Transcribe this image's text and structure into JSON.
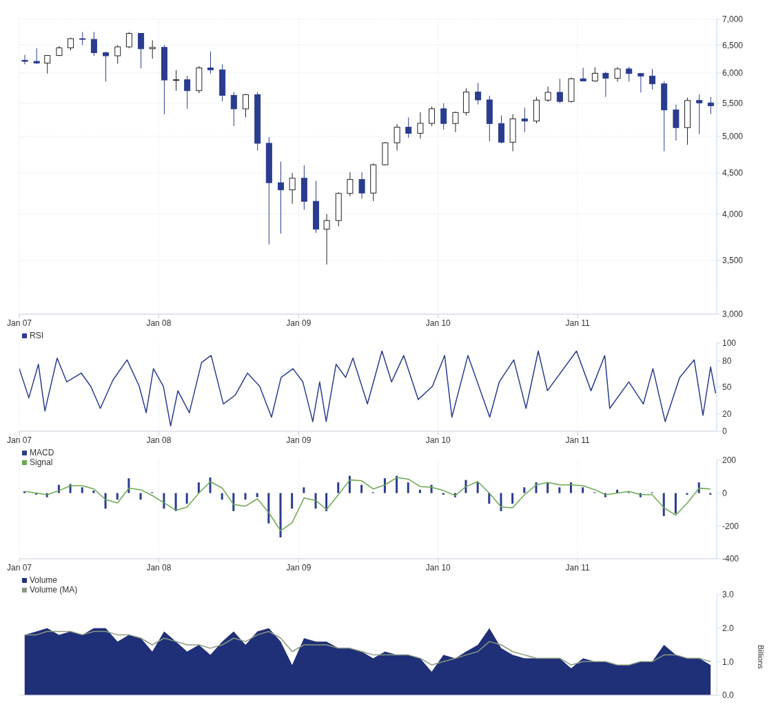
{
  "chart_data": [
    {
      "type": "candlestick",
      "colors": [
        "#2a3c8e",
        "#2a3c8e",
        "#ffffff",
        "#ffffff",
        "#ffffff",
        "#2a3c8e",
        "#2a3c8e",
        "#2a3c8e",
        "#ffffff",
        "#ffffff",
        "#2a3c8e",
        "#ffffff",
        "#2a3c8e",
        "#ffffff",
        "#2a3c8e",
        "#ffffff",
        "#2a3c8e",
        "#2a3c8e",
        "#2a3c8e",
        "#ffffff",
        "#2a3c8e",
        "#2a3c8e",
        "#2a3c8e",
        "#ffffff",
        "#2a3c8e",
        "#2a3c8e",
        "#ffffff",
        "#ffffff",
        "#ffffff",
        "#2a3c8e",
        "#ffffff",
        "#ffffff",
        "#ffffff",
        "#2a3c8e",
        "#ffffff",
        "#ffffff",
        "#2a3c8e",
        "#ffffff",
        "#ffffff",
        "#2a3c8e",
        "#2a3c8e",
        "#2a3c8e",
        "#ffffff",
        "#2a3c8e",
        "#ffffff",
        "#ffffff",
        "#2a3c8e",
        "#ffffff",
        "#2a3c8e",
        "#ffffff",
        "#2a3c8e",
        "#ffffff",
        "#2a3c8e",
        "#2a3c8e",
        "#2a3c8e",
        "#2a3c8e",
        "#2a3c8e",
        "#ffffff",
        "#2a3c8e",
        "#2a3c8e"
      ],
      "log": "y",
      "grid": true,
      "xlim": [
        "2007-01-01",
        "2011-12-31"
      ],
      "ylim": [
        3000,
        7000
      ],
      "yticks": [
        {
          "value": 3000,
          "label": "3,000"
        },
        {
          "value": 3500,
          "label": "3,500"
        },
        {
          "value": 4000,
          "label": "4,000"
        },
        {
          "value": 4500,
          "label": "4,500"
        },
        {
          "value": 5000,
          "label": "5,000"
        },
        {
          "value": 5500,
          "label": "5,500"
        },
        {
          "value": 6000,
          "label": "6,000"
        },
        {
          "value": 6500,
          "label": "6,500"
        },
        {
          "value": 7000,
          "label": "7,000"
        }
      ],
      "xticks": [
        {
          "value": "2007-01-01",
          "label": "Jan 07"
        },
        {
          "value": "2008-01-01",
          "label": "Jan 08"
        },
        {
          "value": "2009-01-01",
          "label": "Jan 09"
        },
        {
          "value": "2010-01-01",
          "label": "Jan 10"
        },
        {
          "value": "2011-01-01",
          "label": "Jan 11"
        }
      ],
      "x": [
        "2007-01-15",
        "2007-02-15",
        "2007-03-15",
        "2007-04-15",
        "2007-05-15",
        "2007-06-15",
        "2007-07-15",
        "2007-08-15",
        "2007-09-15",
        "2007-10-15",
        "2007-11-15",
        "2007-12-15",
        "2008-01-15",
        "2008-02-15",
        "2008-03-15",
        "2008-04-15",
        "2008-05-15",
        "2008-06-15",
        "2008-07-15",
        "2008-08-15",
        "2008-09-15",
        "2008-10-15",
        "2008-11-15",
        "2008-12-15",
        "2009-01-15",
        "2009-02-15",
        "2009-03-15",
        "2009-04-15",
        "2009-05-15",
        "2009-06-15",
        "2009-07-15",
        "2009-08-15",
        "2009-09-15",
        "2009-10-15",
        "2009-11-15",
        "2009-12-15",
        "2010-01-15",
        "2010-02-15",
        "2010-03-15",
        "2010-04-15",
        "2010-05-15",
        "2010-06-15",
        "2010-07-15",
        "2010-08-15",
        "2010-09-15",
        "2010-10-15",
        "2010-11-15",
        "2010-12-15",
        "2011-01-15",
        "2011-02-15",
        "2011-03-15",
        "2011-04-15",
        "2011-05-15",
        "2011-06-15",
        "2011-07-15",
        "2011-08-15",
        "2011-09-15",
        "2011-10-15",
        "2011-11-15",
        "2011-12-15"
      ],
      "ohlc": [
        [
          6221,
          6320,
          6150,
          6203
        ],
        [
          6203,
          6440,
          6160,
          6172
        ],
        [
          6172,
          6310,
          5990,
          6308
        ],
        [
          6308,
          6480,
          6300,
          6449
        ],
        [
          6449,
          6640,
          6400,
          6621
        ],
        [
          6621,
          6750,
          6500,
          6608
        ],
        [
          6608,
          6750,
          6300,
          6360
        ],
        [
          6360,
          6380,
          5850,
          6303
        ],
        [
          6303,
          6500,
          6160,
          6467
        ],
        [
          6467,
          6750,
          6440,
          6722
        ],
        [
          6722,
          6730,
          6080,
          6432
        ],
        [
          6432,
          6590,
          6250,
          6457
        ],
        [
          6457,
          6500,
          5330,
          5880
        ],
        [
          5880,
          6050,
          5700,
          5884
        ],
        [
          5884,
          5950,
          5410,
          5702
        ],
        [
          5702,
          6120,
          5660,
          6087
        ],
        [
          6087,
          6380,
          5990,
          6054
        ],
        [
          6054,
          6150,
          5530,
          5626
        ],
        [
          5626,
          5680,
          5150,
          5412
        ],
        [
          5412,
          5650,
          5280,
          5637
        ],
        [
          5637,
          5680,
          4800,
          4902
        ],
        [
          4902,
          4990,
          3665,
          4377
        ],
        [
          4377,
          4650,
          3780,
          4288
        ],
        [
          4288,
          4500,
          4120,
          4434
        ],
        [
          4434,
          4600,
          4050,
          4149
        ],
        [
          4149,
          4400,
          3790,
          3830
        ],
        [
          3830,
          4000,
          3460,
          3926
        ],
        [
          3926,
          4260,
          3860,
          4244
        ],
        [
          4244,
          4510,
          4210,
          4418
        ],
        [
          4418,
          4510,
          4180,
          4249
        ],
        [
          4249,
          4630,
          4150,
          4608
        ],
        [
          4608,
          4920,
          4600,
          4909
        ],
        [
          4909,
          5180,
          4800,
          5134
        ],
        [
          5134,
          5280,
          4980,
          5045
        ],
        [
          5045,
          5360,
          4970,
          5191
        ],
        [
          5191,
          5450,
          5150,
          5413
        ],
        [
          5413,
          5500,
          5100,
          5189
        ],
        [
          5189,
          5370,
          5060,
          5355
        ],
        [
          5355,
          5740,
          5310,
          5680
        ],
        [
          5680,
          5830,
          5480,
          5553
        ],
        [
          5553,
          5620,
          4930,
          5188
        ],
        [
          5188,
          5310,
          4900,
          4917
        ],
        [
          4917,
          5330,
          4790,
          5258
        ],
        [
          5258,
          5430,
          5060,
          5225
        ],
        [
          5225,
          5600,
          5190,
          5549
        ],
        [
          5549,
          5770,
          5520,
          5675
        ],
        [
          5675,
          5900,
          5500,
          5528
        ],
        [
          5528,
          5920,
          5510,
          5900
        ],
        [
          5900,
          6090,
          5860,
          5863
        ],
        [
          5863,
          6100,
          5850,
          5994
        ],
        [
          5994,
          6020,
          5600,
          5909
        ],
        [
          5909,
          6100,
          5850,
          6070
        ],
        [
          6070,
          6110,
          5850,
          5990
        ],
        [
          5990,
          6000,
          5670,
          5946
        ],
        [
          5946,
          6070,
          5720,
          5815
        ],
        [
          5815,
          5860,
          4790,
          5395
        ],
        [
          5395,
          5480,
          4940,
          5128
        ],
        [
          5128,
          5590,
          4880,
          5544
        ],
        [
          5544,
          5640,
          5030,
          5505
        ],
        [
          5505,
          5600,
          5330,
          5460
        ]
      ]
    },
    {
      "type": "line",
      "grid": "x",
      "legend": "top left",
      "xlim": [
        "2007-01-01",
        "2011-12-31"
      ],
      "ylim": [
        0,
        100
      ],
      "yticks": [
        0,
        20,
        50,
        80,
        100
      ],
      "xticks": [
        {
          "value": "2007-01-01",
          "label": "Jan 07"
        },
        {
          "value": "2008-01-01",
          "label": "Jan 08"
        },
        {
          "value": "2009-01-01",
          "label": "Jan 09"
        },
        {
          "value": "2010-01-01",
          "label": "Jan 10"
        },
        {
          "value": "2011-01-01",
          "label": "Jan 11"
        }
      ],
      "x": [
        "2007-01-01",
        "2007-01-26",
        "2007-02-20",
        "2007-03-09",
        "2007-04-10",
        "2007-05-05",
        "2007-06-12",
        "2007-07-07",
        "2007-08-01",
        "2007-09-03",
        "2007-10-10",
        "2007-11-11",
        "2007-11-29",
        "2007-12-18",
        "2008-01-13",
        "2008-02-01",
        "2008-02-20",
        "2008-03-21",
        "2008-04-22",
        "2008-05-17",
        "2008-06-18",
        "2008-07-19",
        "2008-08-20",
        "2008-09-21",
        "2008-10-22",
        "2008-11-16",
        "2008-12-17",
        "2009-01-12",
        "2009-02-07",
        "2009-02-25",
        "2009-03-14",
        "2009-04-09",
        "2009-05-04",
        "2009-05-23",
        "2009-06-30",
        "2009-08-07",
        "2009-09-01",
        "2009-10-03",
        "2009-11-10",
        "2009-12-17",
        "2010-01-18",
        "2010-02-06",
        "2010-03-20",
        "2010-05-16",
        "2010-06-10",
        "2010-07-18",
        "2010-08-19",
        "2010-09-20",
        "2010-10-14",
        "2010-12-29",
        "2011-02-05",
        "2011-03-13",
        "2011-03-26",
        "2011-05-15",
        "2011-06-22",
        "2011-07-17",
        "2011-08-18",
        "2011-09-25",
        "2011-11-02",
        "2011-11-25",
        "2011-12-15",
        "2011-12-28"
      ],
      "series": [
        {
          "name": "RSI",
          "color": "#2a3c8e",
          "values": [
            71,
            38,
            76,
            23,
            83,
            56,
            66,
            51,
            26,
            58,
            81,
            51,
            21,
            71,
            51,
            6,
            46,
            21,
            78,
            86,
            31,
            41,
            66,
            51,
            16,
            61,
            71,
            56,
            11,
            56,
            11,
            76,
            61,
            83,
            31,
            91,
            56,
            86,
            36,
            51,
            86,
            16,
            86,
            16,
            56,
            81,
            26,
            91,
            46,
            91,
            46,
            86,
            26,
            56,
            31,
            71,
            11,
            61,
            81,
            18,
            73,
            43
          ]
        }
      ]
    },
    {
      "type": "bar",
      "grid": "x",
      "legend": "top left",
      "xlim": [
        "2007-01-01",
        "2011-12-31"
      ],
      "ylim": [
        -400,
        200
      ],
      "yticks": [
        -400,
        -200,
        0,
        200
      ],
      "xticks": [
        {
          "value": "2007-01-01",
          "label": "Jan 07"
        },
        {
          "value": "2008-01-01",
          "label": "Jan 08"
        },
        {
          "value": "2009-01-01",
          "label": "Jan 09"
        },
        {
          "value": "2010-01-01",
          "label": "Jan 10"
        },
        {
          "value": "2011-01-01",
          "label": "Jan 11"
        }
      ],
      "x": [
        "2007-01-15",
        "2007-02-15",
        "2007-03-15",
        "2007-04-15",
        "2007-05-15",
        "2007-06-15",
        "2007-07-15",
        "2007-08-15",
        "2007-09-15",
        "2007-10-15",
        "2007-11-15",
        "2007-12-15",
        "2008-01-15",
        "2008-02-15",
        "2008-03-15",
        "2008-04-15",
        "2008-05-15",
        "2008-06-15",
        "2008-07-15",
        "2008-08-15",
        "2008-09-15",
        "2008-10-15",
        "2008-11-15",
        "2008-12-15",
        "2009-01-15",
        "2009-02-15",
        "2009-03-15",
        "2009-04-15",
        "2009-05-15",
        "2009-06-15",
        "2009-07-15",
        "2009-08-15",
        "2009-09-15",
        "2009-10-15",
        "2009-11-15",
        "2009-12-15",
        "2010-01-15",
        "2010-02-15",
        "2010-03-15",
        "2010-04-15",
        "2010-05-15",
        "2010-06-15",
        "2010-07-15",
        "2010-08-15",
        "2010-09-15",
        "2010-10-15",
        "2010-11-15",
        "2010-12-15",
        "2011-01-15",
        "2011-02-15",
        "2011-03-15",
        "2011-04-15",
        "2011-05-15",
        "2011-06-15",
        "2011-07-15",
        "2011-08-15",
        "2011-09-15",
        "2011-10-15",
        "2011-11-15",
        "2011-12-15"
      ],
      "series": [
        {
          "name": "MACD",
          "color": "#2a3c8e",
          "values": [
            10,
            -10,
            -25,
            50,
            55,
            35,
            15,
            -95,
            -40,
            90,
            -40,
            5,
            -95,
            -110,
            -65,
            65,
            95,
            -40,
            -110,
            -40,
            -25,
            -185,
            -270,
            -95,
            35,
            -95,
            -110,
            65,
            105,
            50,
            5,
            90,
            105,
            65,
            20,
            50,
            -10,
            -25,
            80,
            65,
            -65,
            -110,
            -65,
            35,
            65,
            65,
            35,
            65,
            35,
            5,
            -25,
            20,
            5,
            -25,
            5,
            -140,
            -125,
            -10,
            65,
            -10
          ]
        },
        {
          "name": "Signal",
          "type": "line",
          "color": "#6aa84f",
          "values": [
            10,
            0,
            -10,
            15,
            45,
            45,
            25,
            -40,
            -60,
            30,
            20,
            -15,
            -60,
            -105,
            -85,
            0,
            70,
            30,
            -70,
            -80,
            -35,
            -120,
            -230,
            -180,
            -30,
            -45,
            -100,
            -10,
            80,
            75,
            25,
            50,
            95,
            85,
            40,
            35,
            15,
            -15,
            40,
            70,
            0,
            -85,
            -90,
            -10,
            50,
            65,
            50,
            50,
            45,
            20,
            -10,
            0,
            10,
            -10,
            -10,
            -90,
            -135,
            -60,
            30,
            25
          ]
        }
      ]
    },
    {
      "type": "area",
      "grid": false,
      "legend": "top left",
      "tick_labels": "y",
      "ylabel": "Billions",
      "xlim": [
        "2007-01-01",
        "2011-12-31"
      ],
      "ylim": [
        0,
        3
      ],
      "yticks": [
        {
          "value": 0,
          "label": "0.0"
        },
        {
          "value": 1,
          "label": "1.0"
        },
        {
          "value": 2,
          "label": "2.0"
        },
        {
          "value": 3,
          "label": "3.0"
        }
      ],
      "x": [
        "2007-01-15",
        "2007-02-15",
        "2007-03-15",
        "2007-04-15",
        "2007-05-15",
        "2007-06-15",
        "2007-07-15",
        "2007-08-15",
        "2007-09-15",
        "2007-10-15",
        "2007-11-15",
        "2007-12-15",
        "2008-01-15",
        "2008-02-15",
        "2008-03-15",
        "2008-04-15",
        "2008-05-15",
        "2008-06-15",
        "2008-07-15",
        "2008-08-15",
        "2008-09-15",
        "2008-10-15",
        "2008-11-15",
        "2008-12-15",
        "2009-01-15",
        "2009-02-15",
        "2009-03-15",
        "2009-04-15",
        "2009-05-15",
        "2009-06-15",
        "2009-07-15",
        "2009-08-15",
        "2009-09-15",
        "2009-10-15",
        "2009-11-15",
        "2009-12-15",
        "2010-01-15",
        "2010-02-15",
        "2010-03-15",
        "2010-04-15",
        "2010-05-15",
        "2010-06-15",
        "2010-07-15",
        "2010-08-15",
        "2010-09-15",
        "2010-10-15",
        "2010-11-15",
        "2010-12-15",
        "2011-01-15",
        "2011-02-15",
        "2011-03-15",
        "2011-04-15",
        "2011-05-15",
        "2011-06-15",
        "2011-07-15",
        "2011-08-15",
        "2011-09-15",
        "2011-10-15",
        "2011-11-15",
        "2011-12-15"
      ],
      "series": [
        {
          "name": "Volume",
          "color": "#1f2f78",
          "values": [
            1.8,
            1.9,
            2.0,
            1.8,
            1.9,
            1.8,
            2.0,
            2.0,
            1.6,
            1.8,
            1.7,
            1.3,
            1.9,
            1.6,
            1.3,
            1.5,
            1.2,
            1.6,
            1.9,
            1.5,
            1.9,
            2.0,
            1.6,
            0.9,
            1.7,
            1.6,
            1.6,
            1.4,
            1.4,
            1.3,
            1.1,
            1.3,
            1.2,
            1.2,
            1.1,
            0.7,
            1.2,
            1.1,
            1.3,
            1.5,
            2.0,
            1.4,
            1.2,
            1.1,
            1.1,
            1.1,
            1.1,
            0.8,
            1.1,
            1.0,
            1.0,
            0.9,
            0.9,
            1.0,
            1.0,
            1.5,
            1.2,
            1.1,
            1.1,
            0.9
          ]
        },
        {
          "name": "Volume (MA)",
          "type": "line",
          "color": "#8a9a80",
          "values": [
            1.8,
            1.8,
            1.9,
            1.9,
            1.9,
            1.8,
            1.9,
            1.9,
            1.8,
            1.8,
            1.7,
            1.5,
            1.7,
            1.6,
            1.5,
            1.5,
            1.4,
            1.5,
            1.7,
            1.6,
            1.8,
            1.9,
            1.7,
            1.3,
            1.5,
            1.5,
            1.5,
            1.4,
            1.4,
            1.3,
            1.2,
            1.2,
            1.2,
            1.2,
            1.1,
            0.9,
            1.0,
            1.1,
            1.2,
            1.3,
            1.6,
            1.5,
            1.3,
            1.2,
            1.1,
            1.1,
            1.1,
            0.9,
            1.0,
            1.0,
            1.0,
            0.9,
            0.9,
            1.0,
            1.0,
            1.2,
            1.2,
            1.1,
            1.1,
            1.0
          ]
        }
      ]
    }
  ]
}
